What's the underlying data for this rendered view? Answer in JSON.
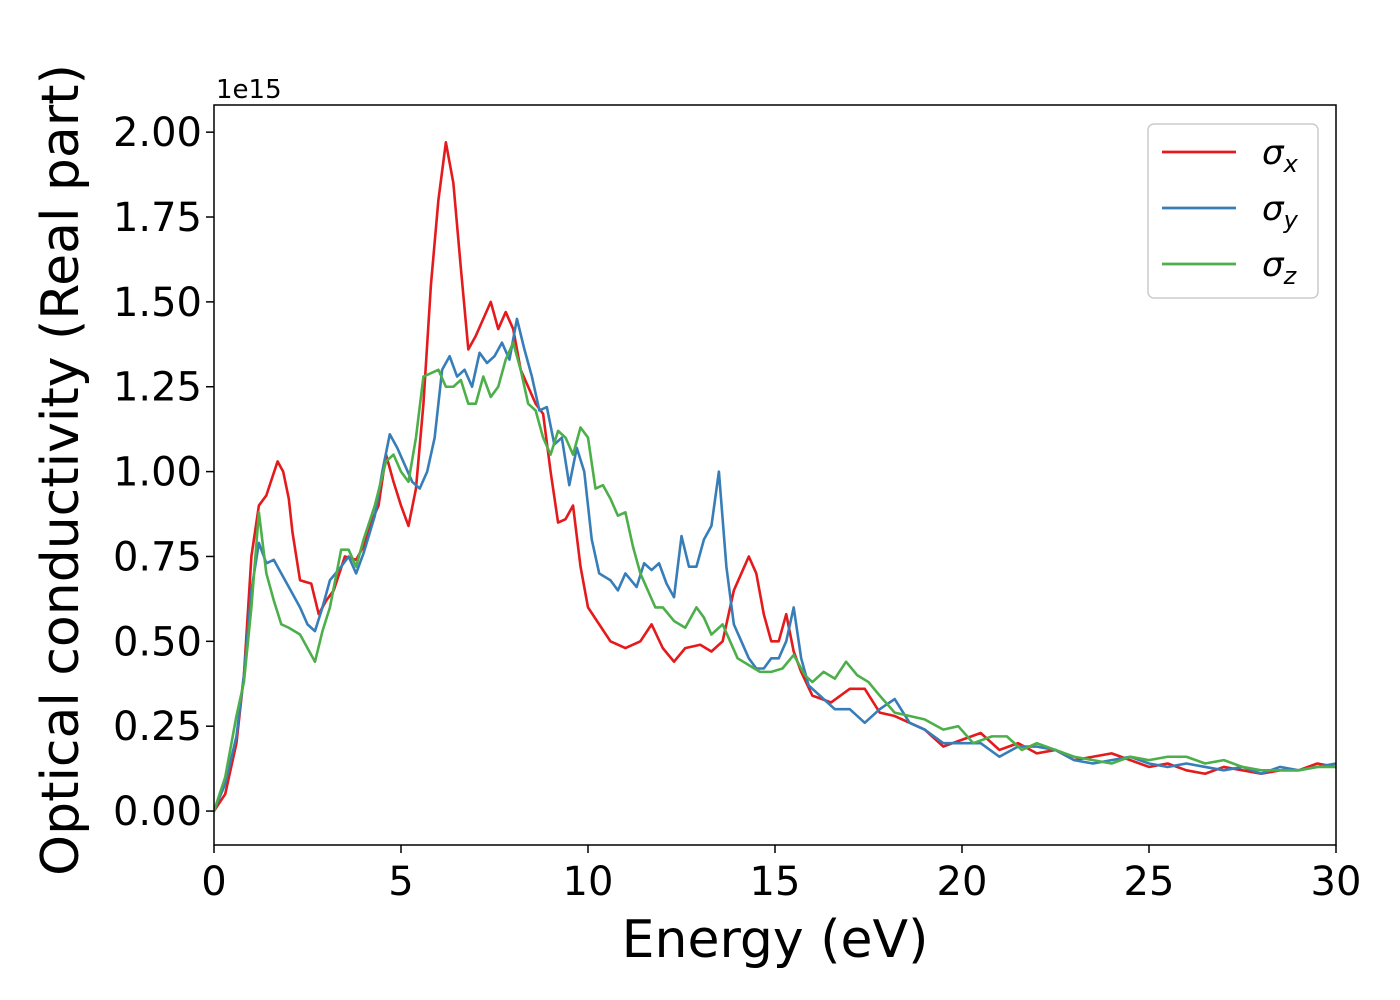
{
  "chart_data": {
    "type": "line",
    "xlabel": "Energy (eV)",
    "ylabel": "Optical conductivity (Real part)",
    "y_offset_label": "1e15",
    "xlim": [
      0,
      30
    ],
    "ylim": [
      -0.1,
      2.08
    ],
    "x_ticks": [
      0,
      5,
      10,
      15,
      20,
      25,
      30
    ],
    "x_tick_labels": [
      "0",
      "5",
      "10",
      "15",
      "20",
      "25",
      "30"
    ],
    "y_ticks": [
      0,
      0.25,
      0.5,
      0.75,
      1.0,
      1.25,
      1.5,
      1.75,
      2.0
    ],
    "y_tick_labels": [
      "0.00",
      "0.25",
      "0.50",
      "0.75",
      "1.00",
      "1.25",
      "1.50",
      "1.75",
      "2.00"
    ],
    "grid": false,
    "legend_position": "top-right",
    "series": [
      {
        "name": "σx",
        "legend_main": "σ",
        "legend_sub": "x",
        "color": "#e41a1c",
        "points": [
          [
            0,
            0
          ],
          [
            0.3,
            0.05
          ],
          [
            0.6,
            0.2
          ],
          [
            0.8,
            0.4
          ],
          [
            1.0,
            0.75
          ],
          [
            1.2,
            0.9
          ],
          [
            1.4,
            0.93
          ],
          [
            1.55,
            0.98
          ],
          [
            1.7,
            1.03
          ],
          [
            1.85,
            1.0
          ],
          [
            2.0,
            0.92
          ],
          [
            2.1,
            0.82
          ],
          [
            2.3,
            0.68
          ],
          [
            2.6,
            0.67
          ],
          [
            2.8,
            0.58
          ],
          [
            3.0,
            0.62
          ],
          [
            3.2,
            0.65
          ],
          [
            3.5,
            0.75
          ],
          [
            3.8,
            0.74
          ],
          [
            4.0,
            0.78
          ],
          [
            4.2,
            0.85
          ],
          [
            4.4,
            0.9
          ],
          [
            4.6,
            1.05
          ],
          [
            4.8,
            0.97
          ],
          [
            5.0,
            0.9
          ],
          [
            5.2,
            0.84
          ],
          [
            5.4,
            0.95
          ],
          [
            5.6,
            1.2
          ],
          [
            5.8,
            1.55
          ],
          [
            6.0,
            1.8
          ],
          [
            6.2,
            1.97
          ],
          [
            6.4,
            1.85
          ],
          [
            6.6,
            1.6
          ],
          [
            6.8,
            1.36
          ],
          [
            7.0,
            1.4
          ],
          [
            7.2,
            1.45
          ],
          [
            7.4,
            1.5
          ],
          [
            7.6,
            1.42
          ],
          [
            7.8,
            1.47
          ],
          [
            8.0,
            1.42
          ],
          [
            8.2,
            1.3
          ],
          [
            8.4,
            1.25
          ],
          [
            8.6,
            1.2
          ],
          [
            8.8,
            1.17
          ],
          [
            9.0,
            1.0
          ],
          [
            9.2,
            0.85
          ],
          [
            9.4,
            0.86
          ],
          [
            9.6,
            0.9
          ],
          [
            9.8,
            0.72
          ],
          [
            10.0,
            0.6
          ],
          [
            10.3,
            0.55
          ],
          [
            10.6,
            0.5
          ],
          [
            11.0,
            0.48
          ],
          [
            11.4,
            0.5
          ],
          [
            11.7,
            0.55
          ],
          [
            12.0,
            0.48
          ],
          [
            12.3,
            0.44
          ],
          [
            12.6,
            0.48
          ],
          [
            13.0,
            0.49
          ],
          [
            13.3,
            0.47
          ],
          [
            13.6,
            0.5
          ],
          [
            13.9,
            0.65
          ],
          [
            14.1,
            0.7
          ],
          [
            14.3,
            0.75
          ],
          [
            14.5,
            0.7
          ],
          [
            14.7,
            0.58
          ],
          [
            14.9,
            0.5
          ],
          [
            15.1,
            0.5
          ],
          [
            15.3,
            0.58
          ],
          [
            15.5,
            0.47
          ],
          [
            15.7,
            0.41
          ],
          [
            16.0,
            0.34
          ],
          [
            16.5,
            0.32
          ],
          [
            17.0,
            0.36
          ],
          [
            17.4,
            0.36
          ],
          [
            17.8,
            0.29
          ],
          [
            18.2,
            0.28
          ],
          [
            18.6,
            0.26
          ],
          [
            19.0,
            0.24
          ],
          [
            19.5,
            0.19
          ],
          [
            20.0,
            0.21
          ],
          [
            20.5,
            0.23
          ],
          [
            21.0,
            0.18
          ],
          [
            21.5,
            0.2
          ],
          [
            22.0,
            0.17
          ],
          [
            22.5,
            0.18
          ],
          [
            23.0,
            0.15
          ],
          [
            23.5,
            0.16
          ],
          [
            24.0,
            0.17
          ],
          [
            24.5,
            0.15
          ],
          [
            25.0,
            0.13
          ],
          [
            25.5,
            0.14
          ],
          [
            26.0,
            0.12
          ],
          [
            26.5,
            0.11
          ],
          [
            27.0,
            0.13
          ],
          [
            27.5,
            0.12
          ],
          [
            28.0,
            0.11
          ],
          [
            28.5,
            0.12
          ],
          [
            29.0,
            0.12
          ],
          [
            29.5,
            0.14
          ],
          [
            30.0,
            0.13
          ]
        ]
      },
      {
        "name": "σy",
        "legend_main": "σ",
        "legend_sub": "y",
        "color": "#377eb8",
        "points": [
          [
            0,
            0
          ],
          [
            0.3,
            0.08
          ],
          [
            0.6,
            0.22
          ],
          [
            0.8,
            0.4
          ],
          [
            1.0,
            0.65
          ],
          [
            1.2,
            0.79
          ],
          [
            1.4,
            0.73
          ],
          [
            1.6,
            0.74
          ],
          [
            1.8,
            0.7
          ],
          [
            2.0,
            0.66
          ],
          [
            2.3,
            0.6
          ],
          [
            2.5,
            0.55
          ],
          [
            2.7,
            0.53
          ],
          [
            2.9,
            0.6
          ],
          [
            3.1,
            0.68
          ],
          [
            3.4,
            0.72
          ],
          [
            3.6,
            0.75
          ],
          [
            3.8,
            0.7
          ],
          [
            4.0,
            0.76
          ],
          [
            4.3,
            0.87
          ],
          [
            4.5,
            1.0
          ],
          [
            4.7,
            1.11
          ],
          [
            4.9,
            1.07
          ],
          [
            5.1,
            1.02
          ],
          [
            5.3,
            0.97
          ],
          [
            5.5,
            0.95
          ],
          [
            5.7,
            1.0
          ],
          [
            5.9,
            1.1
          ],
          [
            6.1,
            1.3
          ],
          [
            6.3,
            1.34
          ],
          [
            6.5,
            1.28
          ],
          [
            6.7,
            1.3
          ],
          [
            6.9,
            1.25
          ],
          [
            7.1,
            1.35
          ],
          [
            7.3,
            1.32
          ],
          [
            7.5,
            1.34
          ],
          [
            7.7,
            1.38
          ],
          [
            7.9,
            1.33
          ],
          [
            8.1,
            1.45
          ],
          [
            8.3,
            1.36
          ],
          [
            8.5,
            1.28
          ],
          [
            8.7,
            1.18
          ],
          [
            8.9,
            1.19
          ],
          [
            9.1,
            1.08
          ],
          [
            9.3,
            1.1
          ],
          [
            9.5,
            0.96
          ],
          [
            9.7,
            1.07
          ],
          [
            9.9,
            1.0
          ],
          [
            10.1,
            0.8
          ],
          [
            10.3,
            0.7
          ],
          [
            10.6,
            0.68
          ],
          [
            10.8,
            0.65
          ],
          [
            11.0,
            0.7
          ],
          [
            11.3,
            0.66
          ],
          [
            11.5,
            0.73
          ],
          [
            11.7,
            0.71
          ],
          [
            11.9,
            0.73
          ],
          [
            12.1,
            0.67
          ],
          [
            12.3,
            0.63
          ],
          [
            12.5,
            0.81
          ],
          [
            12.7,
            0.72
          ],
          [
            12.9,
            0.72
          ],
          [
            13.1,
            0.8
          ],
          [
            13.3,
            0.84
          ],
          [
            13.5,
            1.0
          ],
          [
            13.7,
            0.72
          ],
          [
            13.9,
            0.55
          ],
          [
            14.1,
            0.5
          ],
          [
            14.3,
            0.45
          ],
          [
            14.5,
            0.42
          ],
          [
            14.7,
            0.42
          ],
          [
            14.9,
            0.45
          ],
          [
            15.1,
            0.45
          ],
          [
            15.3,
            0.5
          ],
          [
            15.5,
            0.6
          ],
          [
            15.7,
            0.45
          ],
          [
            15.9,
            0.37
          ],
          [
            16.2,
            0.34
          ],
          [
            16.6,
            0.3
          ],
          [
            17.0,
            0.3
          ],
          [
            17.4,
            0.26
          ],
          [
            17.8,
            0.3
          ],
          [
            18.2,
            0.33
          ],
          [
            18.6,
            0.26
          ],
          [
            19.0,
            0.24
          ],
          [
            19.5,
            0.2
          ],
          [
            20.0,
            0.2
          ],
          [
            20.5,
            0.2
          ],
          [
            21.0,
            0.16
          ],
          [
            21.5,
            0.19
          ],
          [
            22.0,
            0.19
          ],
          [
            22.5,
            0.18
          ],
          [
            23.0,
            0.15
          ],
          [
            23.5,
            0.14
          ],
          [
            24.0,
            0.15
          ],
          [
            24.5,
            0.16
          ],
          [
            25.0,
            0.14
          ],
          [
            25.5,
            0.13
          ],
          [
            26.0,
            0.14
          ],
          [
            26.5,
            0.13
          ],
          [
            27.0,
            0.12
          ],
          [
            27.5,
            0.13
          ],
          [
            28.0,
            0.11
          ],
          [
            28.5,
            0.13
          ],
          [
            29.0,
            0.12
          ],
          [
            29.5,
            0.13
          ],
          [
            30.0,
            0.14
          ]
        ]
      },
      {
        "name": "σz",
        "legend_main": "σ",
        "legend_sub": "z",
        "color": "#4daf4a",
        "points": [
          [
            0,
            0
          ],
          [
            0.3,
            0.1
          ],
          [
            0.6,
            0.28
          ],
          [
            0.8,
            0.38
          ],
          [
            1.0,
            0.6
          ],
          [
            1.2,
            0.88
          ],
          [
            1.4,
            0.7
          ],
          [
            1.6,
            0.62
          ],
          [
            1.8,
            0.55
          ],
          [
            2.0,
            0.54
          ],
          [
            2.3,
            0.52
          ],
          [
            2.5,
            0.48
          ],
          [
            2.7,
            0.44
          ],
          [
            2.9,
            0.53
          ],
          [
            3.1,
            0.6
          ],
          [
            3.4,
            0.77
          ],
          [
            3.6,
            0.77
          ],
          [
            3.8,
            0.72
          ],
          [
            4.0,
            0.8
          ],
          [
            4.3,
            0.9
          ],
          [
            4.6,
            1.03
          ],
          [
            4.8,
            1.05
          ],
          [
            5.0,
            1.0
          ],
          [
            5.2,
            0.97
          ],
          [
            5.4,
            1.1
          ],
          [
            5.6,
            1.28
          ],
          [
            5.8,
            1.29
          ],
          [
            6.0,
            1.3
          ],
          [
            6.2,
            1.25
          ],
          [
            6.4,
            1.25
          ],
          [
            6.6,
            1.27
          ],
          [
            6.8,
            1.2
          ],
          [
            7.0,
            1.2
          ],
          [
            7.2,
            1.28
          ],
          [
            7.4,
            1.22
          ],
          [
            7.6,
            1.25
          ],
          [
            7.8,
            1.33
          ],
          [
            8.0,
            1.38
          ],
          [
            8.2,
            1.3
          ],
          [
            8.4,
            1.2
          ],
          [
            8.6,
            1.18
          ],
          [
            8.8,
            1.1
          ],
          [
            9.0,
            1.05
          ],
          [
            9.2,
            1.12
          ],
          [
            9.4,
            1.1
          ],
          [
            9.6,
            1.05
          ],
          [
            9.8,
            1.13
          ],
          [
            10.0,
            1.1
          ],
          [
            10.2,
            0.95
          ],
          [
            10.4,
            0.96
          ],
          [
            10.6,
            0.92
          ],
          [
            10.8,
            0.87
          ],
          [
            11.0,
            0.88
          ],
          [
            11.2,
            0.78
          ],
          [
            11.4,
            0.7
          ],
          [
            11.6,
            0.65
          ],
          [
            11.8,
            0.6
          ],
          [
            12.0,
            0.6
          ],
          [
            12.3,
            0.56
          ],
          [
            12.6,
            0.54
          ],
          [
            12.9,
            0.6
          ],
          [
            13.1,
            0.57
          ],
          [
            13.3,
            0.52
          ],
          [
            13.6,
            0.55
          ],
          [
            13.8,
            0.5
          ],
          [
            14.0,
            0.45
          ],
          [
            14.3,
            0.43
          ],
          [
            14.6,
            0.41
          ],
          [
            14.9,
            0.41
          ],
          [
            15.2,
            0.42
          ],
          [
            15.5,
            0.46
          ],
          [
            15.8,
            0.4
          ],
          [
            16.0,
            0.38
          ],
          [
            16.3,
            0.41
          ],
          [
            16.6,
            0.39
          ],
          [
            16.9,
            0.44
          ],
          [
            17.2,
            0.4
          ],
          [
            17.5,
            0.38
          ],
          [
            17.8,
            0.34
          ],
          [
            18.2,
            0.29
          ],
          [
            18.6,
            0.28
          ],
          [
            19.0,
            0.27
          ],
          [
            19.5,
            0.24
          ],
          [
            19.9,
            0.25
          ],
          [
            20.3,
            0.2
          ],
          [
            20.8,
            0.22
          ],
          [
            21.2,
            0.22
          ],
          [
            21.6,
            0.18
          ],
          [
            22.0,
            0.2
          ],
          [
            22.5,
            0.18
          ],
          [
            23.0,
            0.16
          ],
          [
            23.5,
            0.15
          ],
          [
            24.0,
            0.14
          ],
          [
            24.5,
            0.16
          ],
          [
            25.0,
            0.15
          ],
          [
            25.5,
            0.16
          ],
          [
            26.0,
            0.16
          ],
          [
            26.5,
            0.14
          ],
          [
            27.0,
            0.15
          ],
          [
            27.5,
            0.13
          ],
          [
            28.0,
            0.12
          ],
          [
            28.5,
            0.12
          ],
          [
            29.0,
            0.12
          ],
          [
            29.5,
            0.13
          ],
          [
            30.0,
            0.13
          ]
        ]
      }
    ]
  }
}
